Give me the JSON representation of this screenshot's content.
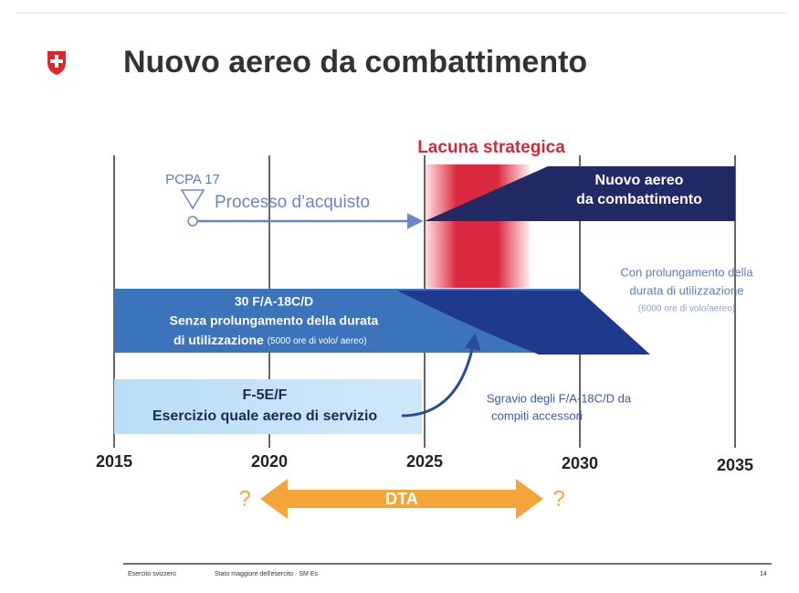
{
  "title": "Nuovo aereo da combattimento",
  "gap_label": "Lacuna strategica",
  "milestone": "PCPA 17",
  "procurement": "Processo d’acquisto",
  "new_aircraft": [
    "Nuovo aereo",
    "da combattimento"
  ],
  "extension_note": [
    "Con prolungamento della",
    "durata di utilizzazione",
    "(6000 ore di volo/aereo)"
  ],
  "fa18": {
    "lines": [
      "30 F/A-18C/D",
      "Senza prolungamento della durata"
    ],
    "last_line": "di utilizzazione",
    "hours": "(5000 ore di volo/ aereo)"
  },
  "f5": [
    "F-5E/F",
    "Esercizio quale aereo di servizio"
  ],
  "relief": [
    "Sgravio degli F/A-18C/D da",
    "compiti accessori"
  ],
  "years": [
    "2015",
    "2020",
    "2025",
    "2030",
    "2035"
  ],
  "dta": {
    "left": "?",
    "label": "DTA",
    "right": "?"
  },
  "footer": {
    "org": "Esercito svizzero",
    "dept": "Stato maggiore dell'esercito · SM Es",
    "page": "14"
  }
}
